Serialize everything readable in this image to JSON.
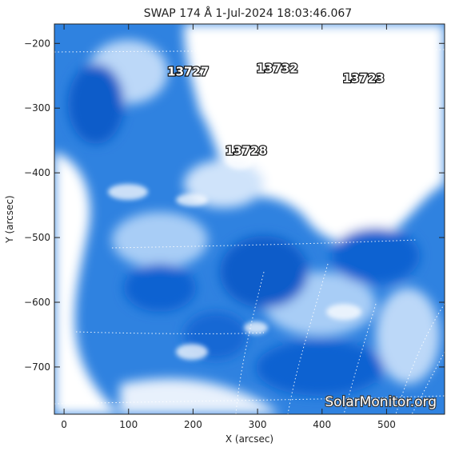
{
  "title": "SWAP 174 Å  1-Jul-2024 18:03:46.067",
  "x_axis": {
    "label": "X (arcsec)",
    "range": [
      -15,
      590
    ],
    "ticks": [
      {
        "value": 0,
        "label": "0"
      },
      {
        "value": 100,
        "label": "100"
      },
      {
        "value": 200,
        "label": "200"
      },
      {
        "value": 300,
        "label": "300"
      },
      {
        "value": 400,
        "label": "400"
      },
      {
        "value": 500,
        "label": "500"
      }
    ]
  },
  "y_axis": {
    "label": "Y (arcsec)",
    "range": [
      -773,
      -170
    ],
    "ticks": [
      {
        "value": -200,
        "label": "−200"
      },
      {
        "value": -300,
        "label": "−300"
      },
      {
        "value": -400,
        "label": "−400"
      },
      {
        "value": -500,
        "label": "−500"
      },
      {
        "value": -600,
        "label": "−600"
      },
      {
        "value": -700,
        "label": "−700"
      }
    ]
  },
  "active_regions": [
    {
      "label": "13727",
      "x": 160,
      "y": -250
    },
    {
      "label": "13732",
      "x": 298,
      "y": -245
    },
    {
      "label": "13723",
      "x": 432,
      "y": -260
    },
    {
      "label": "13728",
      "x": 250,
      "y": -372
    }
  ],
  "colors": {
    "deep_blue": "#0a5fcf",
    "mid_blue": "#3a8ae6",
    "light_blue": "#9fc7f5",
    "background": "#ffffff"
  },
  "watermark": "SolarMonitor.org"
}
